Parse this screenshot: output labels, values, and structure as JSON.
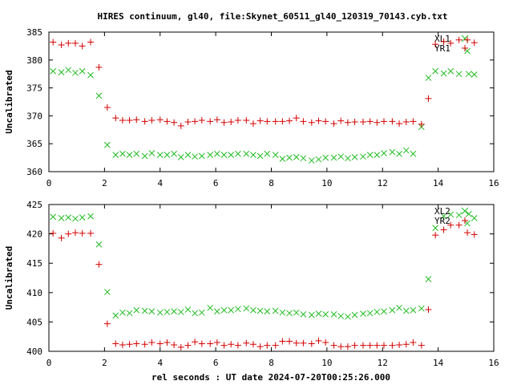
{
  "title": "HIRES continuum, gl40, file:Skynet_60511_gl40_120319_70143.cyb.txt",
  "xlabel": "rel seconds : UT date 2024-07-20T00:25:26.000",
  "colors": {
    "red": "#d40000",
    "green": "#22bb22"
  },
  "chart_data": [
    {
      "type": "scatter",
      "ylabel": "Uncalibrated",
      "xlim": [
        0,
        16
      ],
      "ylim": [
        360,
        385
      ],
      "xticks": [
        0,
        2,
        4,
        6,
        8,
        10,
        12,
        14,
        16
      ],
      "yticks": [
        360,
        365,
        370,
        375,
        380,
        385
      ],
      "grid": false,
      "legend_position": "top-right",
      "series": [
        {
          "name": "XL1",
          "marker": "x",
          "color": "#22bb22",
          "x": [
            0.15,
            0.45,
            0.7,
            0.95,
            1.2,
            1.5,
            1.8,
            2.1,
            2.4,
            2.65,
            2.9,
            3.15,
            3.45,
            3.7,
            4.0,
            4.25,
            4.5,
            4.75,
            5.0,
            5.25,
            5.5,
            5.8,
            6.05,
            6.3,
            6.55,
            6.8,
            7.1,
            7.35,
            7.6,
            7.85,
            8.15,
            8.4,
            8.65,
            8.9,
            9.15,
            9.45,
            9.7,
            9.95,
            10.25,
            10.5,
            10.75,
            11.0,
            11.3,
            11.55,
            11.8,
            12.05,
            12.35,
            12.6,
            12.85,
            13.1,
            13.4,
            13.65,
            13.9,
            14.2,
            14.45,
            14.75,
            15.05,
            15.1,
            15.3
          ],
          "y": [
            378.0,
            377.8,
            378.2,
            377.7,
            378.0,
            377.3,
            373.6,
            364.8,
            363.0,
            363.2,
            363.0,
            363.2,
            362.8,
            363.3,
            363.0,
            363.0,
            363.2,
            362.6,
            363.0,
            362.7,
            362.8,
            363.0,
            363.2,
            363.0,
            363.0,
            363.2,
            363.2,
            363.0,
            362.8,
            363.2,
            363.0,
            362.3,
            362.5,
            362.6,
            362.4,
            362.0,
            362.2,
            362.5,
            362.5,
            362.7,
            362.4,
            362.6,
            362.7,
            363.0,
            363.0,
            363.3,
            363.5,
            363.2,
            363.8,
            363.2,
            368.0,
            376.8,
            378.0,
            377.6,
            378.0,
            377.5,
            381.6,
            377.5,
            377.4
          ]
        },
        {
          "name": "YR1",
          "marker": "+",
          "color": "#d40000",
          "x": [
            0.15,
            0.45,
            0.7,
            0.95,
            1.2,
            1.5,
            1.8,
            2.1,
            2.4,
            2.65,
            2.9,
            3.15,
            3.45,
            3.7,
            4.0,
            4.25,
            4.5,
            4.75,
            5.0,
            5.25,
            5.5,
            5.8,
            6.05,
            6.3,
            6.55,
            6.8,
            7.1,
            7.35,
            7.6,
            7.85,
            8.15,
            8.4,
            8.65,
            8.9,
            9.15,
            9.45,
            9.7,
            9.95,
            10.25,
            10.5,
            10.75,
            11.0,
            11.3,
            11.55,
            11.8,
            12.05,
            12.35,
            12.6,
            12.85,
            13.1,
            13.4,
            13.65,
            13.9,
            14.2,
            14.45,
            14.75,
            15.05,
            15.3
          ],
          "y": [
            383.2,
            382.7,
            383.0,
            383.0,
            382.5,
            383.2,
            378.7,
            371.5,
            369.6,
            369.2,
            369.2,
            369.3,
            369.0,
            369.2,
            369.3,
            369.0,
            368.8,
            368.2,
            368.9,
            369.0,
            369.2,
            369.0,
            369.3,
            368.8,
            368.9,
            369.2,
            369.2,
            368.6,
            369.1,
            369.0,
            369.0,
            369.0,
            369.1,
            369.6,
            369.0,
            368.8,
            369.1,
            369.0,
            368.6,
            369.1,
            368.8,
            368.9,
            368.9,
            369.0,
            368.8,
            369.0,
            369.0,
            368.6,
            368.9,
            369.0,
            368.5,
            373.1,
            382.8,
            383.3,
            383.0,
            383.6,
            383.6,
            383.1
          ]
        }
      ]
    },
    {
      "type": "scatter",
      "ylabel": "Uncalibrated",
      "xlim": [
        0,
        16
      ],
      "ylim": [
        400,
        425
      ],
      "xticks": [
        0,
        2,
        4,
        6,
        8,
        10,
        12,
        14,
        16
      ],
      "yticks": [
        400,
        405,
        410,
        415,
        420,
        425
      ],
      "grid": false,
      "legend_position": "top-right",
      "series": [
        {
          "name": "XL2",
          "marker": "x",
          "color": "#22bb22",
          "x": [
            0.15,
            0.45,
            0.7,
            0.95,
            1.2,
            1.5,
            1.8,
            2.1,
            2.4,
            2.65,
            2.9,
            3.15,
            3.45,
            3.7,
            4.0,
            4.25,
            4.5,
            4.75,
            5.0,
            5.25,
            5.5,
            5.8,
            6.05,
            6.3,
            6.55,
            6.8,
            7.1,
            7.35,
            7.6,
            7.85,
            8.15,
            8.4,
            8.65,
            8.9,
            9.15,
            9.45,
            9.7,
            9.95,
            10.25,
            10.5,
            10.75,
            11.0,
            11.3,
            11.55,
            11.8,
            12.05,
            12.35,
            12.6,
            12.85,
            13.1,
            13.4,
            13.65,
            13.9,
            14.2,
            14.45,
            14.75,
            15.05,
            15.1,
            15.3
          ],
          "y": [
            422.9,
            422.7,
            422.8,
            422.6,
            422.8,
            423.0,
            418.2,
            410.1,
            406.1,
            406.6,
            406.5,
            407.0,
            406.9,
            406.8,
            406.6,
            406.7,
            406.8,
            406.7,
            407.1,
            406.5,
            406.6,
            407.4,
            406.8,
            407.0,
            407.0,
            407.2,
            407.3,
            407.0,
            406.9,
            406.8,
            406.9,
            406.6,
            406.5,
            406.6,
            406.3,
            406.2,
            406.4,
            406.3,
            406.3,
            406.0,
            405.9,
            406.2,
            406.4,
            406.5,
            406.7,
            406.8,
            407.0,
            407.4,
            406.9,
            407.0,
            407.3,
            412.3,
            421.0,
            423.0,
            423.3,
            423.2,
            421.8,
            423.4,
            422.7
          ]
        },
        {
          "name": "YR2",
          "marker": "+",
          "color": "#d40000",
          "x": [
            0.15,
            0.45,
            0.7,
            0.95,
            1.2,
            1.5,
            1.8,
            2.1,
            2.4,
            2.65,
            2.9,
            3.15,
            3.45,
            3.7,
            4.0,
            4.25,
            4.5,
            4.75,
            5.0,
            5.25,
            5.5,
            5.8,
            6.05,
            6.3,
            6.55,
            6.8,
            7.1,
            7.35,
            7.6,
            7.85,
            8.15,
            8.4,
            8.65,
            8.9,
            9.15,
            9.45,
            9.7,
            9.95,
            10.25,
            10.5,
            10.75,
            11.0,
            11.3,
            11.55,
            11.8,
            12.05,
            12.35,
            12.6,
            12.85,
            13.1,
            13.4,
            13.65,
            13.9,
            14.2,
            14.45,
            14.75,
            15.05,
            15.3
          ],
          "y": [
            420.1,
            419.3,
            420.0,
            420.2,
            420.1,
            420.1,
            414.8,
            404.7,
            401.3,
            401.1,
            401.2,
            401.3,
            401.2,
            401.5,
            401.3,
            401.5,
            401.1,
            400.7,
            401.0,
            401.6,
            401.3,
            401.3,
            401.5,
            401.0,
            401.2,
            401.0,
            401.4,
            401.2,
            400.8,
            401.0,
            401.0,
            401.7,
            401.7,
            401.4,
            401.4,
            401.3,
            401.8,
            401.5,
            401.0,
            400.8,
            400.8,
            401.0,
            401.0,
            401.0,
            401.0,
            401.0,
            401.0,
            401.1,
            401.2,
            401.5,
            401.0,
            407.1,
            419.8,
            420.7,
            421.5,
            421.5,
            420.2,
            419.9
          ]
        }
      ]
    }
  ]
}
